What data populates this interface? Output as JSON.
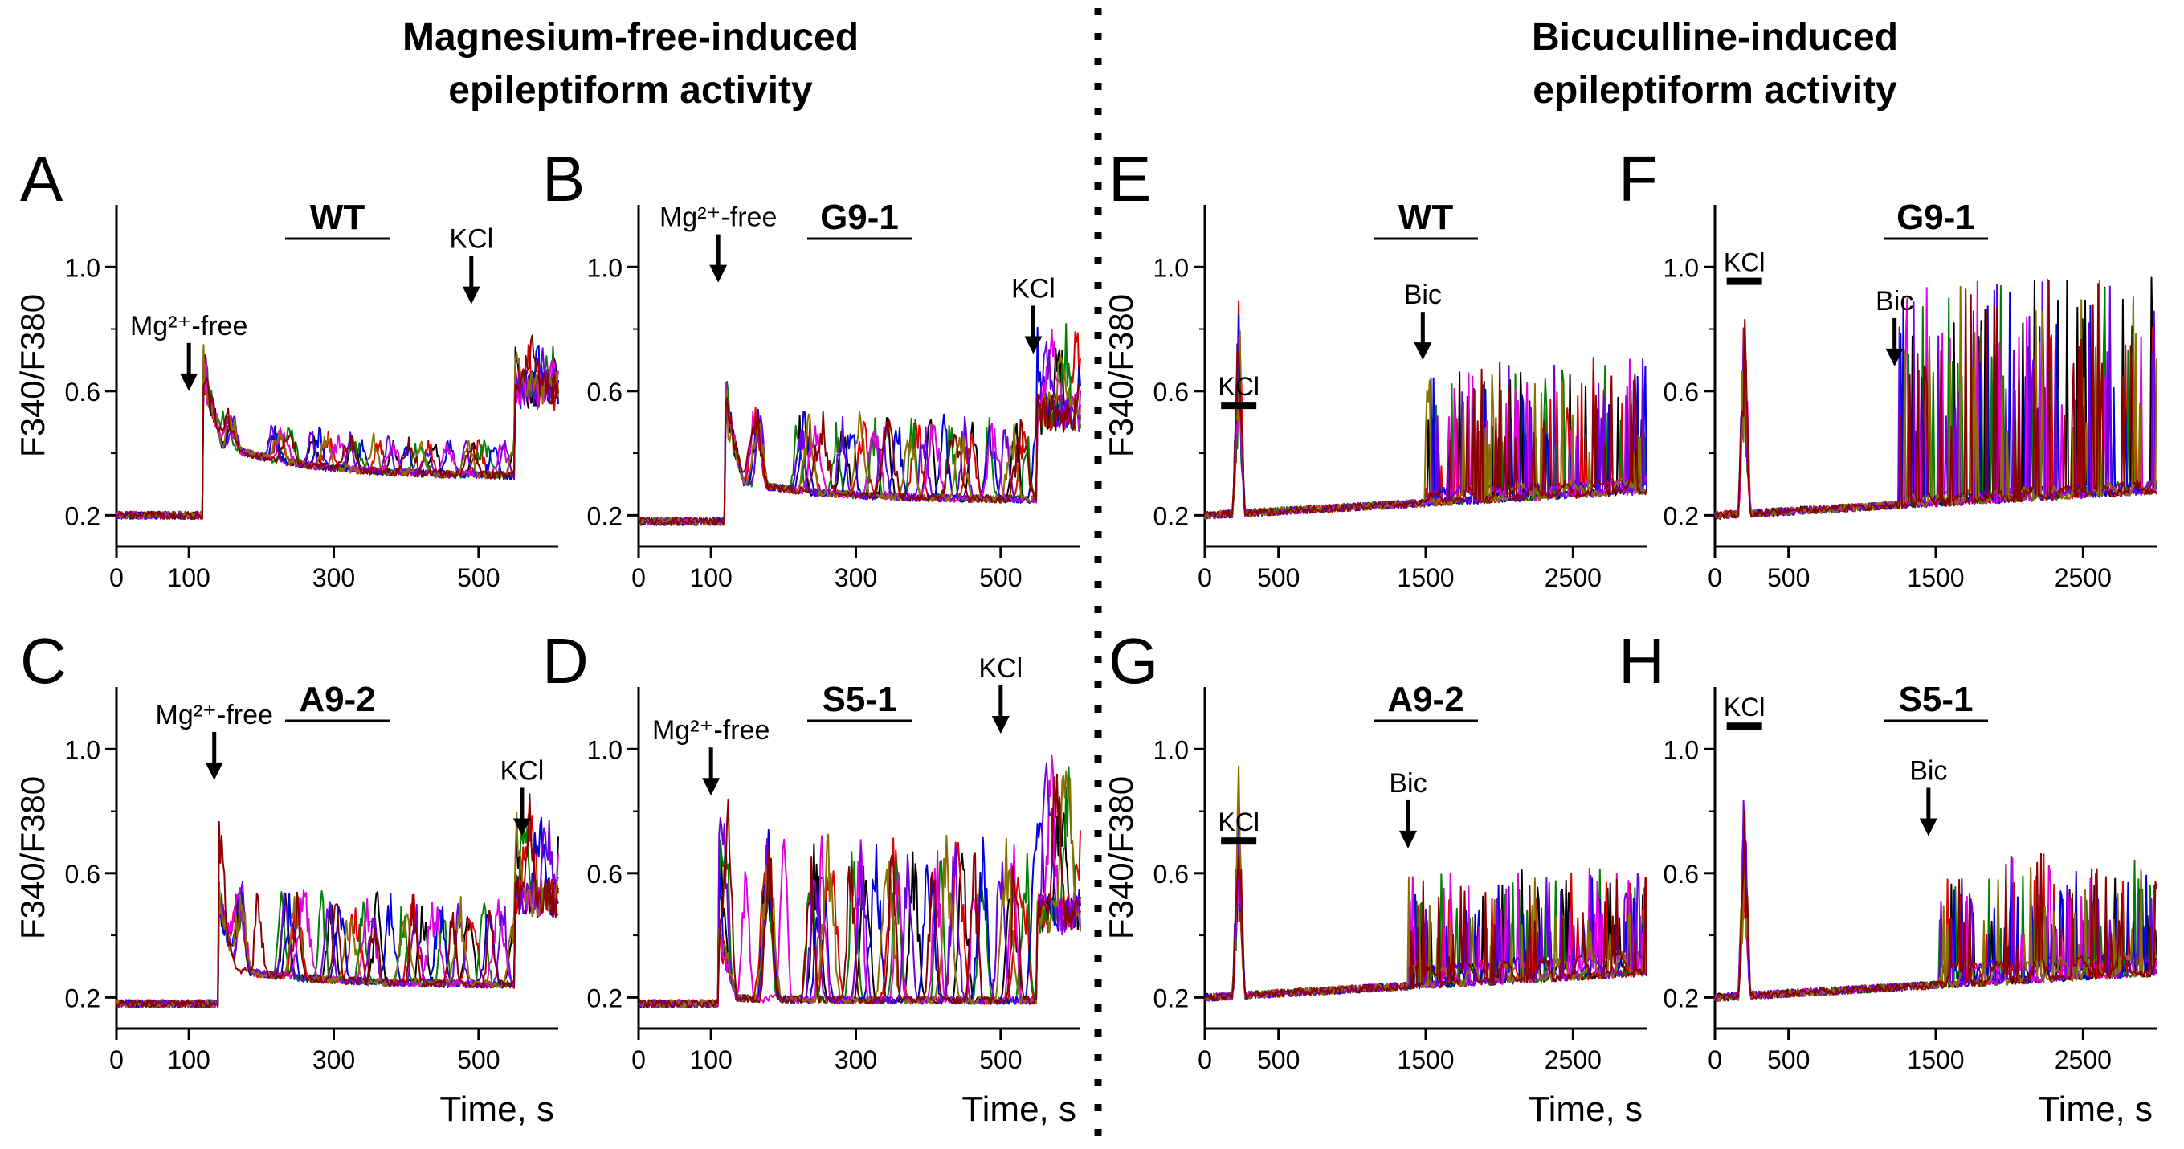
{
  "left_heading": [
    "Magnesium-free-induced",
    "epileptiform activity"
  ],
  "right_heading": [
    "Bicuculline-induced",
    "epileptiform activity"
  ],
  "colors": {
    "traces": [
      "#000000",
      "#e00000",
      "#008000",
      "#0000e0",
      "#e000e0",
      "#7000e0",
      "#8a7000",
      "#8b0000"
    ],
    "axis": "#000000",
    "divider": "#000000"
  },
  "chart_data": [
    {
      "panel": "A",
      "type": "line",
      "title": "WT",
      "ylabel": "F340/F380",
      "xlabel": "",
      "xlim": [
        0,
        610
      ],
      "ylim": [
        0.1,
        1.2
      ],
      "xticks": [
        0,
        100,
        300,
        500
      ],
      "yticks": [
        0.2,
        0.6,
        1.0
      ],
      "n_series": 8,
      "baseline": 0.2,
      "response": "mg",
      "onset": 120,
      "level": 0.45,
      "osc": 0.1,
      "annotations": [
        {
          "text": "Mg²⁺-free",
          "kind": "arrow",
          "x": 100,
          "y": 0.6
        },
        {
          "text": "KCl",
          "kind": "arrow",
          "x": 490,
          "y": 0.88
        }
      ]
    },
    {
      "panel": "B",
      "type": "line",
      "title": "G9-1",
      "ylabel": "",
      "xlabel": "",
      "xlim": [
        0,
        610
      ],
      "ylim": [
        0.1,
        1.2
      ],
      "xticks": [
        0,
        100,
        300,
        500
      ],
      "yticks": [
        0.2,
        0.6,
        1.0
      ],
      "n_series": 8,
      "baseline": 0.18,
      "response": "mg",
      "onset": 120,
      "level": 0.32,
      "osc": 0.22,
      "annotations": [
        {
          "text": "Mg²⁺-free",
          "kind": "arrow",
          "x": 110,
          "y": 0.95
        },
        {
          "text": "KCl",
          "kind": "arrow",
          "x": 545,
          "y": 0.72
        }
      ]
    },
    {
      "panel": "C",
      "type": "line",
      "title": "A9-2",
      "ylabel": "F340/F380",
      "xlabel": "Time, s",
      "xlim": [
        0,
        610
      ],
      "ylim": [
        0.1,
        1.2
      ],
      "xticks": [
        0,
        100,
        300,
        500
      ],
      "yticks": [
        0.2,
        0.6,
        1.0
      ],
      "n_series": 8,
      "baseline": 0.18,
      "response": "mg",
      "onset": 140,
      "level": 0.3,
      "osc": 0.24,
      "annotations": [
        {
          "text": "Mg²⁺-free",
          "kind": "arrow",
          "x": 135,
          "y": 0.9
        },
        {
          "text": "KCl",
          "kind": "arrow",
          "x": 560,
          "y": 0.72
        }
      ]
    },
    {
      "panel": "D",
      "type": "line",
      "title": "S5-1",
      "ylabel": "",
      "xlabel": "Time, s",
      "xlim": [
        0,
        610
      ],
      "ylim": [
        0.1,
        1.2
      ],
      "xticks": [
        0,
        100,
        300,
        500
      ],
      "yticks": [
        0.2,
        0.6,
        1.0
      ],
      "n_series": 8,
      "baseline": 0.18,
      "response": "mg",
      "onset": 110,
      "level": 0.2,
      "osc": 0.45,
      "annotations": [
        {
          "text": "Mg²⁺-free",
          "kind": "arrow",
          "x": 100,
          "y": 0.85
        },
        {
          "text": "KCl",
          "kind": "arrow",
          "x": 500,
          "y": 1.05
        }
      ]
    },
    {
      "panel": "E",
      "type": "line",
      "title": "WT",
      "ylabel": "F340/F380",
      "xlabel": "",
      "xlim": [
        0,
        3000
      ],
      "ylim": [
        0.1,
        1.2
      ],
      "xticks": [
        0,
        500,
        1500,
        2500
      ],
      "yticks": [
        0.2,
        0.6,
        1.0
      ],
      "n_series": 8,
      "baseline": 0.2,
      "response": "bic",
      "onset": 1500,
      "level": 0.26,
      "osc": 0.3,
      "annotations": [
        {
          "text": "KCl",
          "kind": "bar",
          "x": 230,
          "y": 0.55
        },
        {
          "text": "Bic",
          "kind": "arrow",
          "x": 1480,
          "y": 0.7
        }
      ]
    },
    {
      "panel": "F",
      "type": "line",
      "title": "G9-1",
      "ylabel": "",
      "xlabel": "",
      "xlim": [
        0,
        3000
      ],
      "ylim": [
        0.1,
        1.2
      ],
      "xticks": [
        0,
        500,
        1500,
        2500
      ],
      "yticks": [
        0.2,
        0.6,
        1.0
      ],
      "n_series": 8,
      "baseline": 0.2,
      "response": "bic",
      "onset": 1250,
      "level": 0.24,
      "osc": 0.5,
      "annotations": [
        {
          "text": "KCl",
          "kind": "bar",
          "x": 200,
          "y": 0.95
        },
        {
          "text": "Bic",
          "kind": "arrow",
          "x": 1220,
          "y": 0.68
        }
      ]
    },
    {
      "panel": "G",
      "type": "line",
      "title": "A9-2",
      "ylabel": "F340/F380",
      "xlabel": "Time, s",
      "xlim": [
        0,
        3000
      ],
      "ylim": [
        0.1,
        1.2
      ],
      "xticks": [
        0,
        500,
        1500,
        2500
      ],
      "yticks": [
        0.2,
        0.6,
        1.0
      ],
      "n_series": 8,
      "baseline": 0.2,
      "response": "bic",
      "onset": 1380,
      "level": 0.3,
      "osc": 0.22,
      "annotations": [
        {
          "text": "KCl",
          "kind": "bar",
          "x": 230,
          "y": 0.7
        },
        {
          "text": "Bic",
          "kind": "arrow",
          "x": 1380,
          "y": 0.68
        }
      ]
    },
    {
      "panel": "H",
      "type": "line",
      "title": "S5-1",
      "ylabel": "",
      "xlabel": "Time, s",
      "xlim": [
        0,
        3000
      ],
      "ylim": [
        0.1,
        1.2
      ],
      "xticks": [
        0,
        500,
        1500,
        2500
      ],
      "yticks": [
        0.2,
        0.6,
        1.0
      ],
      "n_series": 8,
      "baseline": 0.2,
      "response": "bic",
      "onset": 1520,
      "level": 0.3,
      "osc": 0.25,
      "annotations": [
        {
          "text": "KCl",
          "kind": "bar",
          "x": 200,
          "y": 1.07
        },
        {
          "text": "Bic",
          "kind": "arrow",
          "x": 1450,
          "y": 0.72
        }
      ]
    }
  ]
}
